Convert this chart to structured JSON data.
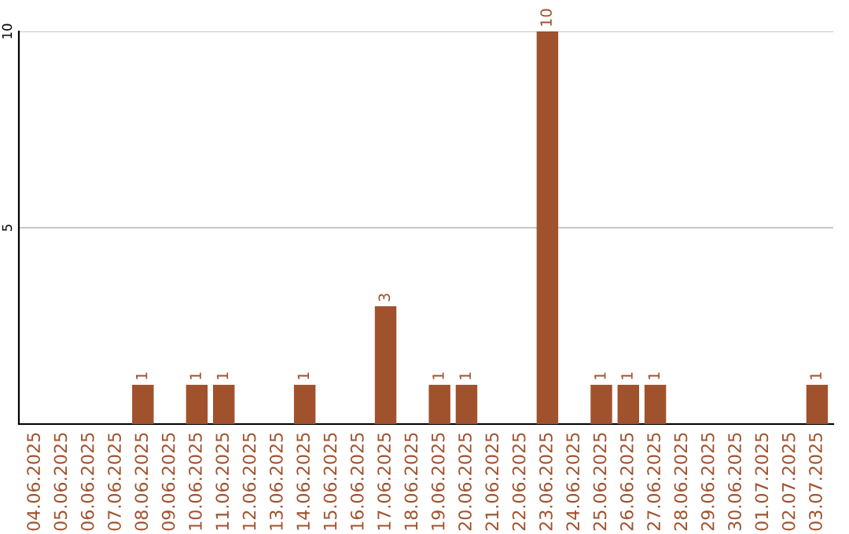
{
  "chart_data": {
    "type": "bar",
    "categories": [
      "04.06.2025",
      "05.06.2025",
      "06.06.2025",
      "07.06.2025",
      "08.06.2025",
      "09.06.2025",
      "10.06.2025",
      "11.06.2025",
      "12.06.2025",
      "13.06.2025",
      "14.06.2025",
      "15.06.2025",
      "16.06.2025",
      "17.06.2025",
      "18.06.2025",
      "19.06.2025",
      "20.06.2025",
      "21.06.2025",
      "22.06.2025",
      "23.06.2025",
      "24.06.2025",
      "25.06.2025",
      "26.06.2025",
      "27.06.2025",
      "28.06.2025",
      "29.06.2025",
      "30.06.2025",
      "01.07.2025",
      "02.07.2025",
      "03.07.2025"
    ],
    "values": [
      0,
      0,
      0,
      0,
      1,
      0,
      1,
      1,
      0,
      0,
      1,
      0,
      0,
      3,
      0,
      1,
      1,
      0,
      0,
      10,
      0,
      1,
      1,
      1,
      0,
      0,
      0,
      0,
      0,
      1
    ],
    "value_labels": [
      null,
      null,
      null,
      null,
      "1",
      null,
      "1",
      "1",
      null,
      null,
      "1",
      null,
      null,
      "3",
      null,
      "1",
      "1",
      null,
      null,
      "10",
      null,
      "1",
      "1",
      "1",
      null,
      null,
      null,
      null,
      null,
      "1"
    ],
    "color": "#a0522d",
    "ylim": [
      0,
      10
    ],
    "yticks": [
      5,
      10
    ],
    "grid": "y"
  }
}
